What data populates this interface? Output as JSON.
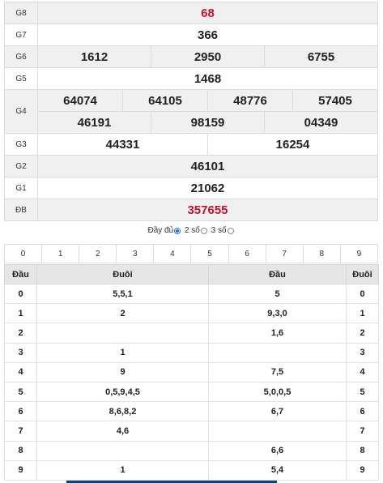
{
  "prizes": {
    "g8": {
      "label": "G8",
      "numbers": [
        "68"
      ]
    },
    "g7": {
      "label": "G7",
      "numbers": [
        "366"
      ]
    },
    "g6": {
      "label": "G6",
      "numbers": [
        "1612",
        "2950",
        "6755"
      ]
    },
    "g5": {
      "label": "G5",
      "numbers": [
        "1468"
      ]
    },
    "g4": {
      "label": "G4",
      "numbers": [
        "64074",
        "64105",
        "48776",
        "57405",
        "46191",
        "98159",
        "04349"
      ]
    },
    "g3": {
      "label": "G3",
      "numbers": [
        "44331",
        "16254"
      ]
    },
    "g2": {
      "label": "G2",
      "numbers": [
        "46101"
      ]
    },
    "g1": {
      "label": "G1",
      "numbers": [
        "21062"
      ]
    },
    "db": {
      "label": "ĐB",
      "numbers": [
        "357655"
      ]
    }
  },
  "colors": {
    "special_number": "#c8102e",
    "selected_radio": "#1a73e8"
  },
  "options": {
    "full_label": "Đầy đủ",
    "two_digit_label": "2 số",
    "three_digit_label": "3 số",
    "selected": "2 số"
  },
  "digits": [
    "0",
    "1",
    "2",
    "3",
    "4",
    "5",
    "6",
    "7",
    "8",
    "9"
  ],
  "loto": {
    "headers": {
      "dau_left": "Đầu",
      "duoi_left": "Đuôi",
      "dau_right": "Đầu",
      "duoi_right": "Đuôi"
    },
    "rows": [
      {
        "digit": "0",
        "duoi": "5,5,1",
        "dau": "5"
      },
      {
        "digit": "1",
        "duoi": "2",
        "dau": "9,3,0"
      },
      {
        "digit": "2",
        "duoi": "",
        "dau": "1,6"
      },
      {
        "digit": "3",
        "duoi": "1",
        "dau": ""
      },
      {
        "digit": "4",
        "duoi": "9",
        "dau": "7,5"
      },
      {
        "digit": "5",
        "duoi": "0,5,9,4,5",
        "dau": "5,0,0,5"
      },
      {
        "digit": "6",
        "duoi": "8,6,8,2",
        "dau": "6,7"
      },
      {
        "digit": "7",
        "duoi": "4,6",
        "dau": ""
      },
      {
        "digit": "8",
        "duoi": "",
        "dau": "6,6"
      },
      {
        "digit": "9",
        "duoi": "1",
        "dau": "5,4"
      }
    ]
  }
}
